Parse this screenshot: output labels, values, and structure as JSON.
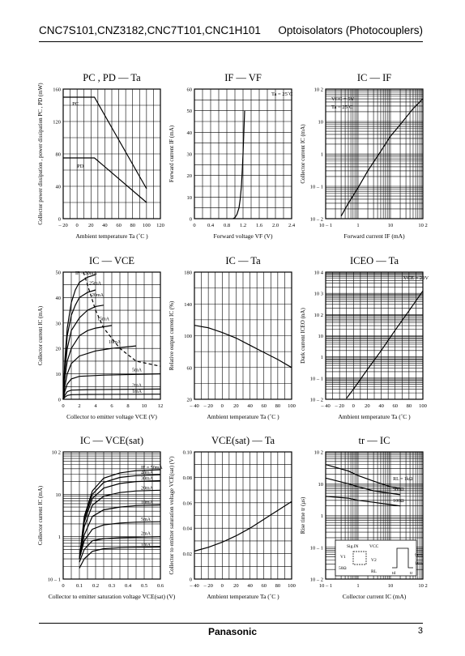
{
  "header": {
    "left": "CNC7S101,CNZ3182,CNC7T101,CNC1H101",
    "right": "Optoisolators (Photocouplers)"
  },
  "footer": {
    "brand": "Panasonic",
    "page": "3"
  },
  "chart_data": [
    {
      "id": "pc-pd-ta",
      "type": "line",
      "title": "PC , PD — Ta",
      "xlabel": "Ambient temperature    Ta  (˚C )",
      "ylabel": "Collector power dissipation , power dissipation   PC , PD  (mW)",
      "xlim": [
        -20,
        120
      ],
      "ylim": [
        0,
        160
      ],
      "xscale": "linear",
      "yscale": "linear",
      "xticks": [
        -20,
        0,
        20,
        40,
        60,
        80,
        100,
        120
      ],
      "xtick_labels": [
        "– 20",
        "0",
        "20",
        "40",
        "60",
        "80",
        "100",
        "120"
      ],
      "yticks": [
        0,
        40,
        80,
        120,
        160
      ],
      "ytick_labels": [
        "0",
        "40",
        "80",
        "120",
        "160"
      ],
      "xgrid": [
        -20,
        -10,
        0,
        10,
        20,
        30,
        40,
        50,
        60,
        70,
        80,
        90,
        100,
        110,
        120
      ],
      "ygrid": [
        0,
        20,
        40,
        60,
        80,
        100,
        120,
        140,
        160
      ],
      "series": [
        {
          "name": "PC",
          "x": [
            -20,
            25,
            100
          ],
          "y": [
            150,
            150,
            37
          ]
        },
        {
          "name": "PD",
          "x": [
            -20,
            25,
            100
          ],
          "y": [
            75,
            75,
            20
          ]
        }
      ],
      "annotations": [
        {
          "text": "PC",
          "x": -7,
          "y": 140
        },
        {
          "text": "PD",
          "x": 0,
          "y": 63
        }
      ]
    },
    {
      "id": "if-vf",
      "type": "line",
      "title": "IF — VF",
      "xlabel": "Forward voltage    VF  (V)",
      "ylabel": "Forward current   IF  (mA)",
      "xlim": [
        0,
        2.4
      ],
      "ylim": [
        0,
        60
      ],
      "xscale": "linear",
      "yscale": "linear",
      "xticks": [
        0,
        0.4,
        0.8,
        1.2,
        1.6,
        2.0,
        2.4
      ],
      "xtick_labels": [
        "0",
        "0.4",
        "0.8",
        "1.2",
        "1.6",
        "2.0",
        "2.4"
      ],
      "yticks": [
        0,
        10,
        20,
        30,
        40,
        50,
        60
      ],
      "ytick_labels": [
        "0",
        "10",
        "20",
        "30",
        "40",
        "50",
        "60"
      ],
      "xgrid": [
        0,
        0.2,
        0.4,
        0.6,
        0.8,
        1.0,
        1.2,
        1.4,
        1.6,
        1.8,
        2.0,
        2.2,
        2.4
      ],
      "ygrid": [
        0,
        5,
        10,
        15,
        20,
        25,
        30,
        35,
        40,
        45,
        50,
        55,
        60
      ],
      "series": [
        {
          "name": "",
          "x": [
            0.95,
            1.0,
            1.05,
            1.1,
            1.13,
            1.16,
            1.18,
            1.2,
            1.22,
            1.24
          ],
          "y": [
            0,
            0.5,
            2,
            5,
            9,
            15,
            22,
            30,
            40,
            50
          ]
        }
      ],
      "annotations": [
        {
          "text": "Ta = 25˚C",
          "x": 1.9,
          "y": 57
        }
      ]
    },
    {
      "id": "ic-if",
      "type": "line",
      "title": "IC — IF",
      "xlabel": "Forward current    IF  (mA)",
      "ylabel": "Collector current    IC  (mA)",
      "xlim": [
        0.1,
        100
      ],
      "ylim": [
        0.01,
        100
      ],
      "xscale": "log",
      "yscale": "log",
      "xticks": [
        0.1,
        1,
        10,
        100
      ],
      "xtick_labels": [
        "10 – 1",
        "1",
        "10",
        "10 2"
      ],
      "yticks": [
        0.01,
        0.1,
        1,
        10,
        100
      ],
      "ytick_labels": [
        "10 – 2",
        "10 – 1",
        "1",
        "10",
        "10 2"
      ],
      "series": [
        {
          "name": "",
          "x": [
            0.3,
            0.5,
            1,
            2,
            5,
            10,
            20,
            50,
            100
          ],
          "y": [
            0.012,
            0.03,
            0.09,
            0.3,
            1.2,
            3.5,
            8,
            25,
            50
          ]
        }
      ],
      "annotations": [
        {
          "text": "VCC = 5V",
          "x": 0.15,
          "y": 45
        },
        {
          "text": "Ta = 25˚C",
          "x": 0.15,
          "y": 25
        }
      ]
    },
    {
      "id": "ic-vce",
      "type": "line",
      "title": "IC — VCE",
      "xlabel": "Collector to emitter voltage    VCE  (V)",
      "ylabel": "Collector current    IC  (mA)",
      "xlim": [
        0,
        12
      ],
      "ylim": [
        0,
        50
      ],
      "xscale": "linear",
      "yscale": "linear",
      "xticks": [
        0,
        2,
        4,
        6,
        8,
        10,
        12
      ],
      "xtick_labels": [
        "0",
        "2",
        "4",
        "6",
        "8",
        "10",
        "12"
      ],
      "yticks": [
        0,
        10,
        20,
        30,
        40,
        50
      ],
      "ytick_labels": [
        "0",
        "10",
        "20",
        "30",
        "40",
        "50"
      ],
      "xgrid": [
        0,
        1,
        2,
        3,
        4,
        5,
        6,
        7,
        8,
        9,
        10,
        11,
        12
      ],
      "ygrid": [
        0,
        5,
        10,
        15,
        20,
        25,
        30,
        35,
        40,
        45,
        50
      ],
      "series": [
        {
          "name": "IF = 30mA",
          "x": [
            0,
            0.2,
            0.5,
            1,
            1.5,
            2,
            3,
            4
          ],
          "y": [
            0,
            15,
            28,
            38,
            43,
            46,
            48,
            49
          ]
        },
        {
          "name": "25mA",
          "x": [
            0,
            0.2,
            0.5,
            1,
            1.5,
            2,
            3,
            4
          ],
          "y": [
            0,
            13,
            25,
            33,
            37,
            40,
            42,
            43
          ]
        },
        {
          "name": "20mA",
          "x": [
            0,
            0.2,
            0.5,
            1,
            2,
            3,
            4,
            5
          ],
          "y": [
            0,
            11,
            20,
            27,
            32,
            35,
            36.5,
            37
          ]
        },
        {
          "name": "15mA",
          "x": [
            0,
            0.2,
            0.5,
            1,
            2,
            3,
            4,
            6
          ],
          "y": [
            0,
            8,
            15,
            20,
            25,
            27,
            28,
            29
          ]
        },
        {
          "name": "10mA",
          "x": [
            0,
            0.2,
            0.5,
            1,
            2,
            4,
            6,
            9
          ],
          "y": [
            0,
            5,
            10,
            14,
            17,
            19,
            20,
            21
          ]
        },
        {
          "name": "5mA",
          "x": [
            0,
            0.2,
            0.5,
            1,
            2,
            5,
            12
          ],
          "y": [
            0,
            3,
            6,
            8,
            9,
            9.5,
            10
          ]
        },
        {
          "name": "2mA",
          "x": [
            0,
            0.2,
            0.5,
            1,
            3,
            12
          ],
          "y": [
            0,
            1.5,
            3,
            3.6,
            3.8,
            4
          ]
        },
        {
          "name": "1mA",
          "x": [
            0,
            0.2,
            0.5,
            1,
            3,
            12
          ],
          "y": [
            0,
            0.8,
            1.5,
            1.8,
            1.9,
            2
          ]
        },
        {
          "name": "dashed",
          "x": [
            2.5,
            4,
            5,
            7,
            9,
            12
          ],
          "y": [
            50,
            35,
            28,
            20,
            15,
            13
          ]
        }
      ],
      "labels": [
        "IF = 30mA",
        "25mA",
        "20mA",
        "15mA",
        "10mA",
        "5mA",
        "2mA",
        "1mA"
      ]
    },
    {
      "id": "ic-ta",
      "type": "line",
      "title": "IC — Ta",
      "xlabel": "Ambient temperature    Ta  (˚C )",
      "ylabel": "Relative output current    IC  (%)",
      "xlim": [
        -40,
        100
      ],
      "ylim": [
        20,
        180
      ],
      "xscale": "linear",
      "yscale": "linear",
      "xticks": [
        -40,
        -20,
        0,
        20,
        40,
        60,
        80,
        100
      ],
      "xtick_labels": [
        "– 40",
        "– 20",
        "0",
        "20",
        "40",
        "60",
        "80",
        "100"
      ],
      "yticks": [
        20,
        60,
        100,
        140,
        180
      ],
      "ytick_labels": [
        "20",
        "60",
        "100",
        "140",
        "180"
      ],
      "xgrid": [
        -40,
        -30,
        -20,
        -10,
        0,
        10,
        20,
        30,
        40,
        50,
        60,
        70,
        80,
        90,
        100
      ],
      "ygrid": [
        20,
        40,
        60,
        80,
        100,
        120,
        140,
        160,
        180
      ],
      "series": [
        {
          "name": "",
          "x": [
            -40,
            -20,
            0,
            20,
            40,
            60,
            80,
            100
          ],
          "y": [
            113,
            110,
            104,
            97,
            88,
            79,
            70,
            60
          ]
        }
      ]
    },
    {
      "id": "iceo-ta",
      "type": "line",
      "title": "ICEO — Ta",
      "xlabel": "Ambient temperature    Ta  (˚C )",
      "ylabel": "Dark current    ICEO  (nA)",
      "xlim": [
        -40,
        100
      ],
      "ylim": [
        0.01,
        10000
      ],
      "xscale": "linear",
      "yscale": "log",
      "xticks": [
        -40,
        -20,
        0,
        20,
        40,
        60,
        80,
        100
      ],
      "xtick_labels": [
        "– 40",
        "– 20",
        "0",
        "20",
        "40",
        "60",
        "80",
        "100"
      ],
      "yticks": [
        0.01,
        0.1,
        1,
        10,
        100,
        1000,
        10000
      ],
      "ytick_labels": [
        "10 – 2",
        "10 – 1",
        "1",
        "10",
        "10 2",
        "10 3",
        "10 4"
      ],
      "xgrid": [
        -40,
        -30,
        -20,
        -10,
        0,
        10,
        20,
        30,
        40,
        50,
        60,
        70,
        80,
        90,
        100
      ],
      "series": [
        {
          "name": "",
          "x": [
            -10,
            0,
            20,
            40,
            60,
            80,
            100
          ],
          "y": [
            0.011,
            0.03,
            0.25,
            2,
            18,
            150,
            1300
          ]
        }
      ],
      "annotations": [
        {
          "text": "VCE = 20V",
          "x": 72,
          "y": 4500
        }
      ]
    },
    {
      "id": "ic-vcesat",
      "type": "line",
      "title": "IC — VCE(sat)",
      "xlabel": "Collector to emitter  saturation voltage    VCE(sat)  (V)",
      "ylabel": "Collector current    IC  (mA)",
      "xlim": [
        0,
        0.6
      ],
      "ylim": [
        0.1,
        100
      ],
      "xscale": "linear",
      "yscale": "log",
      "xticks": [
        0,
        0.1,
        0.2,
        0.3,
        0.4,
        0.5,
        0.6
      ],
      "xtick_labels": [
        "0",
        "0.1",
        "0.2",
        "0.3",
        "0.4",
        "0.5",
        "0.6"
      ],
      "yticks": [
        0.1,
        1,
        10,
        100
      ],
      "ytick_labels": [
        "10 – 1",
        "1",
        "10",
        "10 2"
      ],
      "xgrid": [
        0,
        0.05,
        0.1,
        0.15,
        0.2,
        0.25,
        0.3,
        0.35,
        0.4,
        0.45,
        0.5,
        0.55,
        0.6
      ],
      "series": [
        {
          "name": "IF = 50mA",
          "x": [
            0.1,
            0.13,
            0.18,
            0.25,
            0.35,
            0.45,
            0.6
          ],
          "y": [
            0.3,
            3,
            12,
            24,
            32,
            36,
            38
          ]
        },
        {
          "name": "40mA",
          "x": [
            0.1,
            0.13,
            0.18,
            0.25,
            0.35,
            0.45,
            0.6
          ],
          "y": [
            0.3,
            2.6,
            10,
            19,
            25,
            27.5,
            29
          ]
        },
        {
          "name": "30mA",
          "x": [
            0.1,
            0.13,
            0.18,
            0.25,
            0.35,
            0.45,
            0.6
          ],
          "y": [
            0.3,
            2.2,
            8,
            14,
            18,
            20,
            21
          ]
        },
        {
          "name": "20mA",
          "x": [
            0.1,
            0.13,
            0.18,
            0.25,
            0.35,
            0.45,
            0.6
          ],
          "y": [
            0.3,
            1.7,
            5.5,
            9,
            11,
            12,
            12.5
          ]
        },
        {
          "name": "10mA",
          "x": [
            0.1,
            0.13,
            0.18,
            0.25,
            0.35,
            0.45,
            0.6
          ],
          "y": [
            0.3,
            1.1,
            3,
            4.3,
            5,
            5.4,
            5.6
          ]
        },
        {
          "name": "5mA",
          "x": [
            0.1,
            0.13,
            0.18,
            0.25,
            0.35,
            0.45,
            0.6
          ],
          "y": [
            0.3,
            0.8,
            1.5,
            1.9,
            2.1,
            2.2,
            2.25
          ]
        },
        {
          "name": "2mA",
          "x": [
            0.1,
            0.13,
            0.18,
            0.25,
            0.35,
            0.45,
            0.6
          ],
          "y": [
            0.25,
            0.5,
            0.8,
            0.9,
            0.95,
            0.97,
            1.0
          ]
        },
        {
          "name": "1mA",
          "x": [
            0.1,
            0.13,
            0.18,
            0.25,
            0.35,
            0.45,
            0.6
          ],
          "y": [
            0.18,
            0.3,
            0.45,
            0.52,
            0.55,
            0.56,
            0.57
          ]
        }
      ],
      "labels": [
        "IF = 50mA",
        "40mA",
        "30mA",
        "20mA",
        "10mA",
        "5mA",
        "2mA",
        "1mA"
      ]
    },
    {
      "id": "vcesat-ta",
      "type": "line",
      "title": "VCE(sat) — Ta",
      "xlabel": "Ambient temperature    Ta  (˚C )",
      "ylabel": "Collector to emitter saturation voltage   VCE(sat)  (V)",
      "xlim": [
        -40,
        100
      ],
      "ylim": [
        0,
        0.1
      ],
      "xscale": "linear",
      "yscale": "linear",
      "xticks": [
        -40,
        -20,
        0,
        20,
        40,
        60,
        80,
        100
      ],
      "xtick_labels": [
        "– 40",
        "– 20",
        "0",
        "20",
        "40",
        "60",
        "80",
        "100"
      ],
      "yticks": [
        0,
        0.02,
        0.04,
        0.06,
        0.08,
        0.1
      ],
      "ytick_labels": [
        "0",
        "0.02",
        "0.04",
        "0.06",
        "0.08",
        "0.10"
      ],
      "xgrid": [
        -40,
        -30,
        -20,
        -10,
        0,
        10,
        20,
        30,
        40,
        50,
        60,
        70,
        80,
        90,
        100
      ],
      "ygrid": [
        0,
        0.01,
        0.02,
        0.03,
        0.04,
        0.05,
        0.06,
        0.07,
        0.08,
        0.09,
        0.1
      ],
      "series": [
        {
          "name": "",
          "x": [
            -40,
            -20,
            0,
            20,
            40,
            60,
            80,
            100
          ],
          "y": [
            0.022,
            0.025,
            0.029,
            0.034,
            0.04,
            0.047,
            0.054,
            0.061
          ]
        }
      ]
    },
    {
      "id": "tr-ic",
      "type": "line",
      "title": "tr — IC",
      "xlabel": "Collector current    IC  (mA)",
      "ylabel": "Rise time    tr  (μs)",
      "xlim": [
        0.1,
        100
      ],
      "ylim": [
        0.01,
        100
      ],
      "xscale": "log",
      "yscale": "log",
      "xticks": [
        0.1,
        1,
        10,
        100
      ],
      "xtick_labels": [
        "10 – 1",
        "1",
        "10",
        "10 2"
      ],
      "yticks": [
        0.01,
        0.1,
        1,
        10,
        100
      ],
      "ytick_labels": [
        "10 – 2",
        "10 – 1",
        "1",
        "10",
        "10 2"
      ],
      "series": [
        {
          "name": "RL = 1kΩ",
          "x": [
            0.1,
            0.5,
            1,
            3,
            10,
            20
          ],
          "y": [
            40,
            25,
            18,
            12,
            8,
            7
          ]
        },
        {
          "name": "500Ω",
          "x": [
            0.1,
            0.5,
            1,
            3,
            10,
            20
          ],
          "y": [
            15,
            10,
            8,
            6,
            5,
            4.5
          ]
        },
        {
          "name": "100Ω",
          "x": [
            0.1,
            0.5,
            1,
            3,
            10,
            20
          ],
          "y": [
            4,
            3.5,
            3,
            2.6,
            2.2,
            2
          ]
        }
      ],
      "labels": [
        "RL = 1kΩ",
        "500Ω",
        "100Ω"
      ],
      "inset_text": [
        "Sig.IN",
        "VCC",
        "V1",
        "V2",
        "50Ω",
        "RL",
        "90%",
        "10%",
        "tr",
        "td"
      ]
    }
  ]
}
